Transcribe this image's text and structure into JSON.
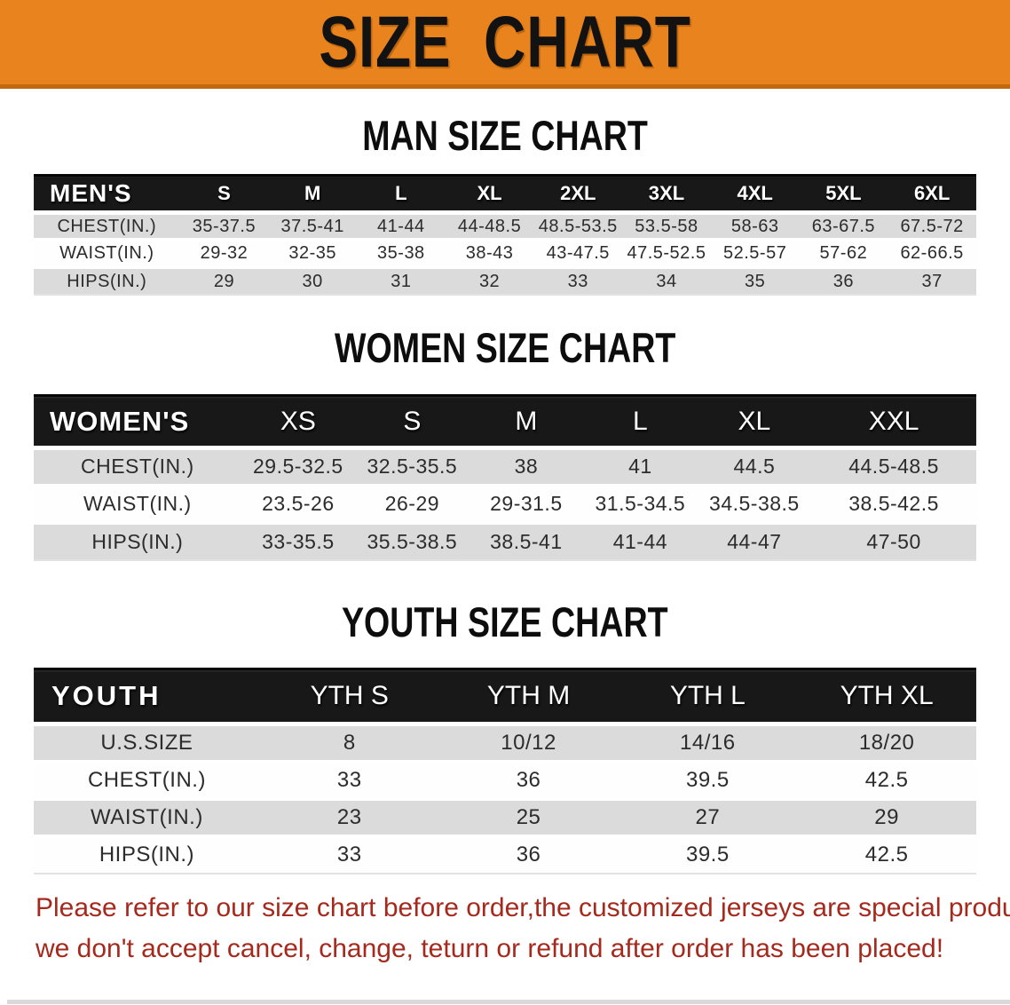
{
  "banner": {
    "title": "SIZE CHART"
  },
  "colors": {
    "banner_bg": "#E8831D",
    "banner_edge": "#C2690F",
    "header_row_bg": "#181818",
    "alt_row_bg": "#DBDBDB",
    "disclaimer_text": "#A5291D"
  },
  "sections": [
    {
      "heading": "MAN SIZE CHART",
      "table": {
        "header": [
          "MEN'S",
          "S",
          "M",
          "L",
          "XL",
          "2XL",
          "3XL",
          "4XL",
          "5XL",
          "6XL"
        ],
        "rows": [
          {
            "label": "CHEST(IN.)",
            "values": [
              "35-37.5",
              "37.5-41",
              "41-44",
              "44-48.5",
              "48.5-53.5",
              "53.5-58",
              "58-63",
              "63-67.5",
              "67.5-72"
            ]
          },
          {
            "label": "WAIST(IN.)",
            "values": [
              "29-32",
              "32-35",
              "35-38",
              "38-43",
              "43-47.5",
              "47.5-52.5",
              "52.5-57",
              "57-62",
              "62-66.5"
            ]
          },
          {
            "label": "HIPS(IN.)",
            "values": [
              "29",
              "30",
              "31",
              "32",
              "33",
              "34",
              "35",
              "36",
              "37"
            ]
          }
        ]
      }
    },
    {
      "heading": "WOMEN SIZE CHART",
      "table": {
        "header": [
          "WOMEN'S",
          "XS",
          "S",
          "M",
          "L",
          "XL",
          "XXL"
        ],
        "rows": [
          {
            "label": "CHEST(IN.)",
            "values": [
              "29.5-32.5",
              "32.5-35.5",
              "38",
              "41",
              "44.5",
              "44.5-48.5"
            ]
          },
          {
            "label": "WAIST(IN.)",
            "values": [
              "23.5-26",
              "26-29",
              "29-31.5",
              "31.5-34.5",
              "34.5-38.5",
              "38.5-42.5"
            ]
          },
          {
            "label": "HIPS(IN.)",
            "values": [
              "33-35.5",
              "35.5-38.5",
              "38.5-41",
              "41-44",
              "44-47",
              "47-50"
            ]
          }
        ]
      }
    },
    {
      "heading": "YOUTH SIZE CHART",
      "table": {
        "header": [
          "YOUTH",
          "YTH S",
          "YTH M",
          "YTH L",
          "YTH XL"
        ],
        "rows": [
          {
            "label": "U.S.SIZE",
            "values": [
              "8",
              "10/12",
              "14/16",
              "18/20"
            ]
          },
          {
            "label": "CHEST(IN.)",
            "values": [
              "33",
              "36",
              "39.5",
              "42.5"
            ]
          },
          {
            "label": "WAIST(IN.)",
            "values": [
              "23",
              "25",
              "27",
              "29"
            ]
          },
          {
            "label": "HIPS(IN.)",
            "values": [
              "33",
              "36",
              "39.5",
              "42.5"
            ]
          }
        ]
      }
    }
  ],
  "disclaimer": {
    "line1": "Please refer to our size chart before order,the customized jerseys are special products,",
    "line2": "we don't accept cancel, change, teturn or refund after order has been placed!"
  }
}
